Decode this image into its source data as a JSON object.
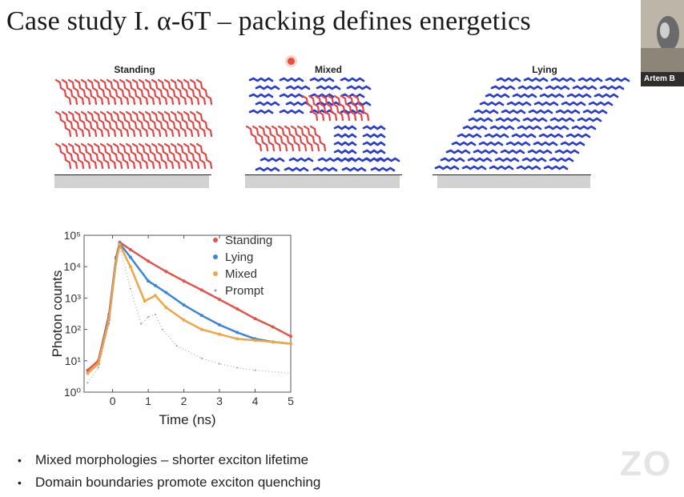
{
  "slide": {
    "title": "Case study I. α-6T – packing defines energetics",
    "bullets": [
      "Mixed morphologies – shorter exciton lifetime",
      "Domain boundaries promote exciton quenching"
    ],
    "watermark": "ZO"
  },
  "panels": [
    {
      "label": "Standing"
    },
    {
      "label": "Mixed"
    },
    {
      "label": "Lying"
    }
  ],
  "webcam": {
    "name": "Artem B"
  },
  "colors": {
    "standing": "#e2554c",
    "lying": "#3a86d8",
    "mixed": "#f0a645",
    "prompt": "#9a9a9a",
    "molecule_red": "#e04848",
    "molecule_blue": "#2a3bd0"
  },
  "chart_data": {
    "type": "line",
    "xlabel": "Time (ns)",
    "ylabel": "Photon counts",
    "xlim": [
      -0.8,
      5
    ],
    "ylim": [
      1,
      100000
    ],
    "y_scale": "log",
    "x_ticks": [
      "0",
      "1",
      "2",
      "3",
      "4",
      "5"
    ],
    "y_ticks": [
      "10⁰",
      "10¹",
      "10²",
      "10³",
      "10⁴",
      "10⁵"
    ],
    "legend_position": "top-right",
    "series": [
      {
        "name": "Standing",
        "x": [
          -0.7,
          -0.4,
          -0.1,
          0.1,
          0.2,
          0.5,
          1.0,
          1.5,
          2.0,
          2.5,
          3.0,
          3.5,
          4.0,
          4.5,
          5.0
        ],
        "y": [
          5,
          10,
          300,
          20000,
          60000,
          35000,
          15000,
          7000,
          3500,
          1800,
          900,
          450,
          220,
          120,
          60
        ]
      },
      {
        "name": "Lying",
        "x": [
          -0.7,
          -0.4,
          -0.1,
          0.1,
          0.2,
          0.5,
          1.0,
          1.2,
          1.5,
          2.0,
          2.5,
          3.0,
          3.5,
          4.0,
          4.5,
          5.0
        ],
        "y": [
          4,
          8,
          250,
          18000,
          55000,
          20000,
          3500,
          2500,
          1500,
          600,
          280,
          140,
          80,
          50,
          40,
          35
        ]
      },
      {
        "name": "Mixed",
        "x": [
          -0.7,
          -0.4,
          -0.1,
          0.1,
          0.2,
          0.5,
          0.9,
          1.2,
          1.5,
          2.0,
          2.5,
          3.0,
          3.5,
          4.0,
          4.5,
          5.0
        ],
        "y": [
          4,
          8,
          200,
          15000,
          50000,
          10000,
          800,
          1200,
          500,
          200,
          100,
          70,
          50,
          45,
          40,
          35
        ]
      },
      {
        "name": "Prompt",
        "x": [
          -0.7,
          -0.4,
          -0.1,
          0.1,
          0.2,
          0.5,
          0.8,
          1.0,
          1.2,
          1.4,
          1.8,
          2.5,
          3.0,
          3.5,
          4.0,
          5.0
        ],
        "y": [
          2,
          6,
          150,
          12000,
          45000,
          2000,
          150,
          250,
          300,
          100,
          30,
          12,
          8,
          6,
          5,
          4
        ]
      }
    ]
  }
}
